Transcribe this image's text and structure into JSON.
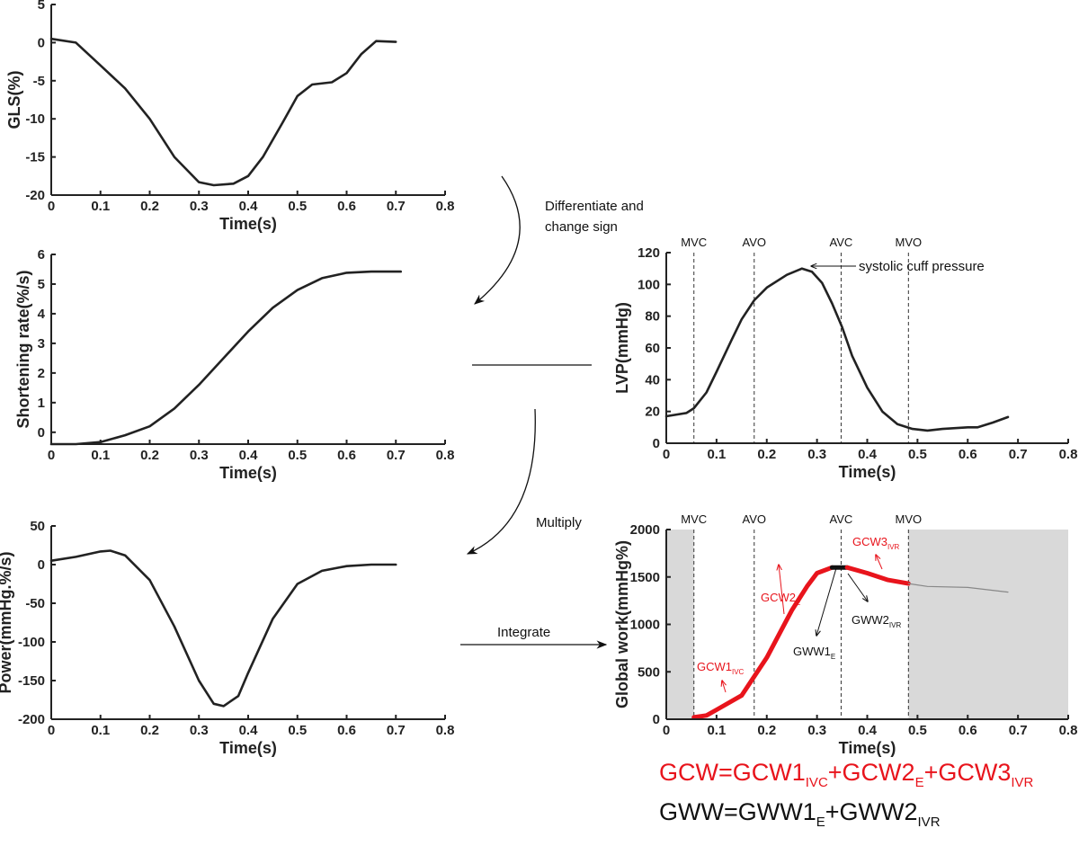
{
  "chart_data": [
    {
      "id": "gls",
      "type": "line",
      "xlabel": "Time(s)",
      "ylabel": "GLS(%)",
      "xlim": [
        0,
        0.8
      ],
      "ylim": [
        -20,
        5
      ],
      "xticks": [
        "0",
        "0.1",
        "0.2",
        "0.3",
        "0.4",
        "0.5",
        "0.6",
        "0.7",
        "0.8"
      ],
      "yticks": [
        "5",
        "0",
        "-5",
        "-10",
        "-15",
        "-20"
      ],
      "series": [
        {
          "color": "#222222",
          "x": [
            0,
            0.05,
            0.1,
            0.15,
            0.2,
            0.25,
            0.3,
            0.33,
            0.37,
            0.4,
            0.43,
            0.47,
            0.5,
            0.53,
            0.57,
            0.6,
            0.63,
            0.66,
            0.7
          ],
          "y": [
            0.5,
            0,
            -3,
            -6,
            -10,
            -15,
            -18.3,
            -18.7,
            -18.5,
            -17.5,
            -15,
            -10.5,
            -7,
            -5.5,
            -5.2,
            -4,
            -1.5,
            0.2,
            0.1
          ]
        }
      ]
    },
    {
      "id": "shortening",
      "type": "line",
      "xlabel": "Time(s)",
      "ylabel": "Shortening rate(%/s)",
      "xlim": [
        0,
        0.8
      ],
      "ylim": [
        -0.4,
        6
      ],
      "xticks": [
        "0",
        "0.1",
        "0.2",
        "0.3",
        "0.4",
        "0.5",
        "0.6",
        "0.7",
        "0.8"
      ],
      "yticks": [
        "6",
        "5",
        "4",
        "3",
        "2",
        "1",
        "0"
      ],
      "series": [
        {
          "color": "#222222",
          "x": [
            0,
            0.05,
            0.1,
            0.15,
            0.2,
            0.25,
            0.3,
            0.35,
            0.4,
            0.45,
            0.5,
            0.55,
            0.6,
            0.65,
            0.71
          ],
          "y": [
            -0.4,
            -0.4,
            -0.33,
            -0.1,
            0.2,
            0.8,
            1.6,
            2.5,
            3.4,
            4.2,
            4.8,
            5.2,
            5.38,
            5.42,
            5.42
          ]
        }
      ]
    },
    {
      "id": "power",
      "type": "line",
      "xlabel": "Time(s)",
      "ylabel": "Power(mmHg.%/s)",
      "xlim": [
        0,
        0.8
      ],
      "ylim": [
        -200,
        50
      ],
      "xticks": [
        "0",
        "0.1",
        "0.2",
        "0.3",
        "0.4",
        "0.5",
        "0.6",
        "0.7",
        "0.8"
      ],
      "yticks": [
        "50",
        "0",
        "-50",
        "-100",
        "-150",
        "-200"
      ],
      "series": [
        {
          "color": "#222222",
          "x": [
            0,
            0.05,
            0.1,
            0.12,
            0.15,
            0.2,
            0.25,
            0.3,
            0.33,
            0.35,
            0.38,
            0.4,
            0.45,
            0.5,
            0.55,
            0.6,
            0.65,
            0.7
          ],
          "y": [
            5,
            10,
            17,
            18,
            12,
            -20,
            -80,
            -150,
            -180,
            -183,
            -170,
            -140,
            -70,
            -25,
            -8,
            -2,
            0,
            0
          ]
        }
      ]
    },
    {
      "id": "lvp",
      "type": "line",
      "xlabel": "Time(s)",
      "ylabel": "LVP(mmHg)",
      "xlim": [
        0,
        0.8
      ],
      "ylim": [
        0,
        120
      ],
      "xticks": [
        "0",
        "0.1",
        "0.2",
        "0.3",
        "0.4",
        "0.5",
        "0.6",
        "0.7",
        "0.8"
      ],
      "yticks": [
        "120",
        "100",
        "80",
        "60",
        "40",
        "20",
        "0"
      ],
      "events": [
        {
          "label": "MVC",
          "x": 0.055
        },
        {
          "label": "AVO",
          "x": 0.175
        },
        {
          "label": "AVC",
          "x": 0.348
        },
        {
          "label": "MVO",
          "x": 0.482
        }
      ],
      "annotation": "systolic cuff pressure",
      "series": [
        {
          "color": "#222222",
          "x": [
            0,
            0.04,
            0.055,
            0.08,
            0.1,
            0.13,
            0.15,
            0.175,
            0.2,
            0.24,
            0.27,
            0.29,
            0.31,
            0.33,
            0.35,
            0.37,
            0.4,
            0.43,
            0.46,
            0.49,
            0.52,
            0.55,
            0.6,
            0.62,
            0.65,
            0.68
          ],
          "y": [
            17,
            19,
            22,
            32,
            45,
            65,
            78,
            90,
            98,
            106,
            110,
            108,
            101,
            88,
            73,
            55,
            35,
            20,
            12,
            9,
            8,
            9,
            10,
            10,
            13,
            16.5
          ]
        }
      ]
    },
    {
      "id": "global-work",
      "type": "line",
      "xlabel": "Time(s)",
      "ylabel": "Global work(mmHg%)",
      "xlim": [
        0,
        0.8
      ],
      "ylim": [
        0,
        2000
      ],
      "xticks": [
        "0",
        "0.1",
        "0.2",
        "0.3",
        "0.4",
        "0.5",
        "0.6",
        "0.7",
        "0.8"
      ],
      "yticks": [
        "2000",
        "1500",
        "1000",
        "500",
        "0"
      ],
      "shaded_regions": [
        [
          0,
          0.055
        ],
        [
          0.482,
          0.8
        ]
      ],
      "shade_color": "#d9d9d9",
      "events": [
        {
          "label": "MVC",
          "x": 0.055
        },
        {
          "label": "AVO",
          "x": 0.175
        },
        {
          "label": "AVC",
          "x": 0.348
        },
        {
          "label": "MVO",
          "x": 0.482
        }
      ],
      "series": [
        {
          "color": "#e8141c",
          "x": [
            0.055,
            0.08,
            0.1,
            0.15,
            0.175,
            0.2,
            0.23,
            0.25,
            0.28,
            0.3,
            0.33
          ],
          "y": [
            20,
            40,
            100,
            250,
            450,
            650,
            950,
            1150,
            1400,
            1540,
            1600
          ]
        },
        {
          "color": "#111111",
          "x": [
            0.33,
            0.36
          ],
          "y": [
            1600,
            1600
          ]
        },
        {
          "color": "#e8141c",
          "x": [
            0.36,
            0.4,
            0.44,
            0.482
          ],
          "y": [
            1600,
            1540,
            1470,
            1430
          ]
        },
        {
          "color": "#888888",
          "x": [
            0.482,
            0.52,
            0.6,
            0.68
          ],
          "y": [
            1430,
            1400,
            1390,
            1340
          ]
        }
      ],
      "annotations": {
        "gcw1": {
          "main": "GCW1",
          "sub": "IVC"
        },
        "gcw2": {
          "main": "GCW2",
          "sub": "E"
        },
        "gcw3": {
          "main": "GCW3",
          "sub": "IVR"
        },
        "gww1": {
          "main": "GWW1",
          "sub": "E"
        },
        "gww2": {
          "main": "GWW2",
          "sub": "IVR"
        }
      }
    }
  ],
  "flow": {
    "differentiate_line1": "Differentiate and",
    "differentiate_line2": "change sign",
    "multiply": "Multiply",
    "integrate": "Integrate"
  },
  "formulas": {
    "gcw": {
      "a": "GCW=GCW1",
      "a_sub": "IVC",
      "b": "+GCW2",
      "b_sub": "E",
      "c": "+GCW3",
      "c_sub": "IVR"
    },
    "gww": {
      "a": "GWW=GWW1",
      "a_sub": "E",
      "b": "+GWW2",
      "b_sub": "IVR"
    }
  },
  "colors": {
    "red": "#e8141c",
    "black": "#111111",
    "shade": "#d9d9d9"
  }
}
